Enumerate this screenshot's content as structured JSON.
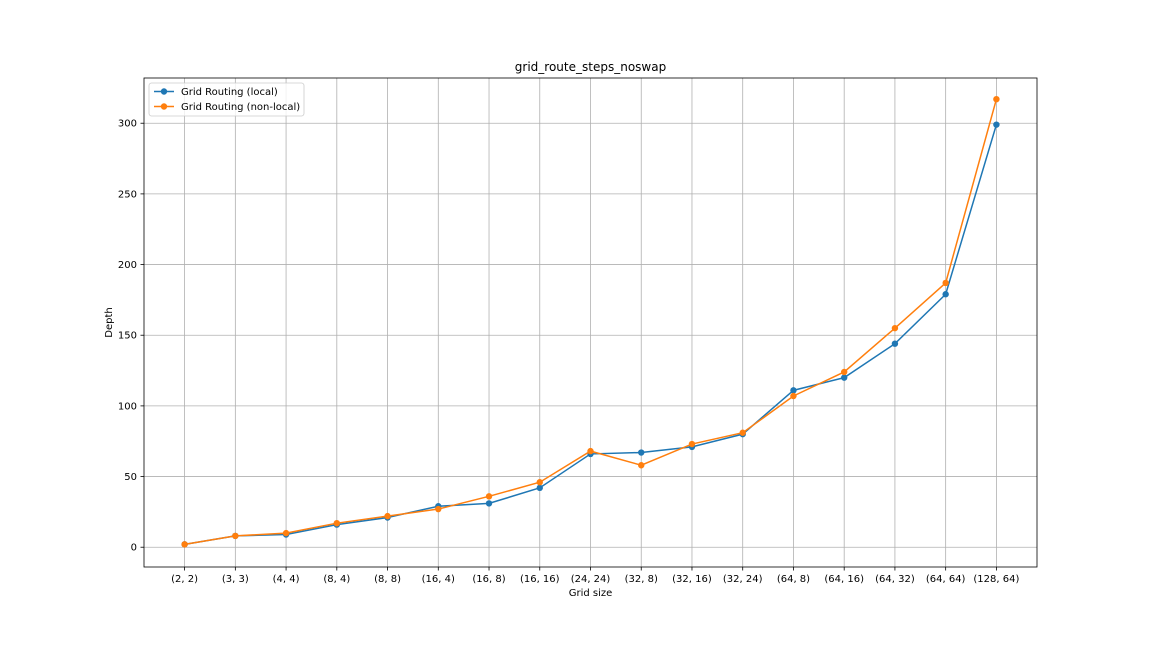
{
  "chart_data": {
    "type": "line",
    "title": "grid_route_steps_noswap",
    "xlabel": "Grid size",
    "ylabel": "Depth",
    "categories": [
      "(2, 2)",
      "(3, 3)",
      "(4, 4)",
      "(8, 4)",
      "(8, 8)",
      "(16, 4)",
      "(16, 8)",
      "(16, 16)",
      "(24, 24)",
      "(32, 8)",
      "(32, 16)",
      "(32, 24)",
      "(64, 8)",
      "(64, 16)",
      "(64, 32)",
      "(64, 64)",
      "(128, 64)"
    ],
    "ylim": [
      -14,
      332
    ],
    "yticks": [
      0,
      50,
      100,
      150,
      200,
      250,
      300
    ],
    "grid": true,
    "legend_position": "top-left",
    "series": [
      {
        "name": "Grid Routing (local)",
        "color": "#1f77b4",
        "marker": "circle",
        "values": [
          2,
          8,
          9,
          16,
          21,
          29,
          31,
          42,
          66,
          67,
          71,
          80,
          111,
          120,
          144,
          179,
          299
        ]
      },
      {
        "name": "Grid Routing (non-local)",
        "color": "#ff7f0e",
        "marker": "circle",
        "values": [
          2,
          8,
          10,
          17,
          22,
          27,
          36,
          46,
          68,
          58,
          73,
          81,
          107,
          124,
          155,
          187,
          317
        ]
      }
    ]
  }
}
